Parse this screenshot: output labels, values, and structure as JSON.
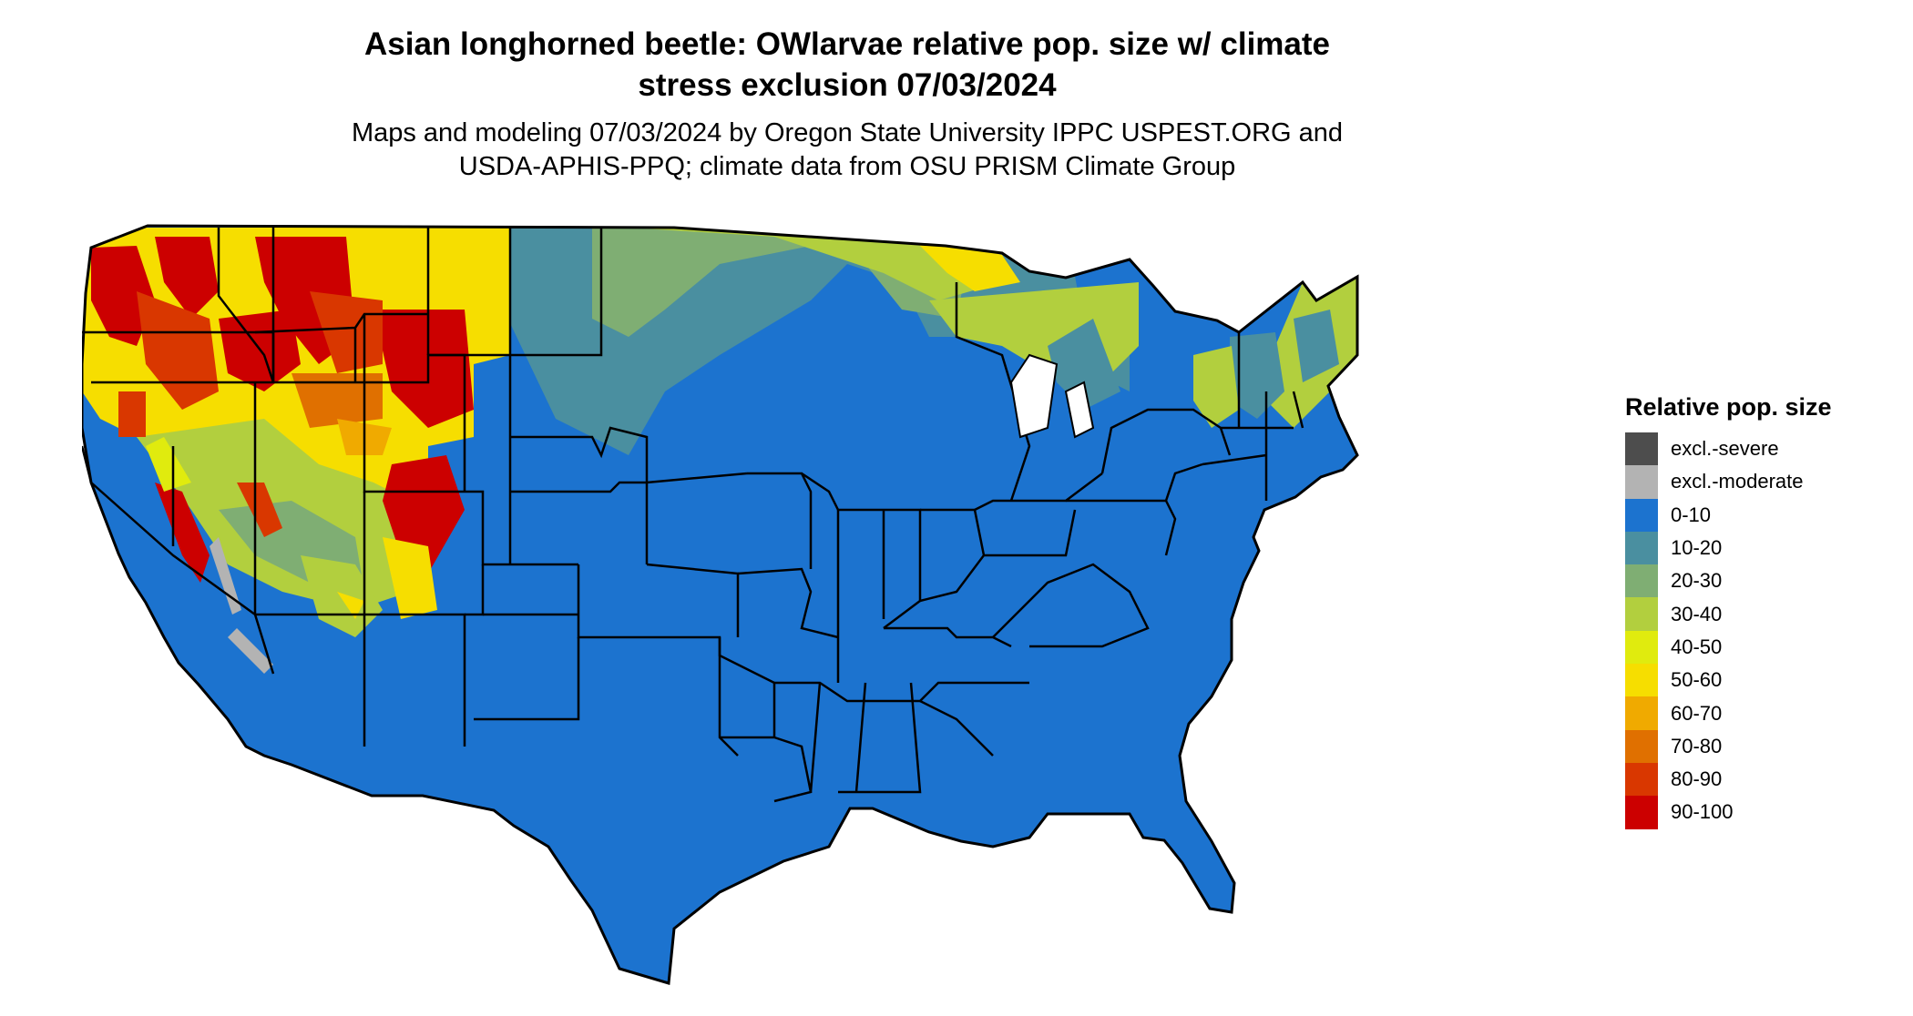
{
  "title_line1": "Asian longhorned beetle: OWlarvae relative pop. size w/ climate",
  "title_line2": "stress exclusion 07/03/2024",
  "subtitle_line1": "Maps and modeling 07/03/2024 by Oregon State University IPPC USPEST.ORG and",
  "subtitle_line2": "USDA-APHIS-PPQ; climate data from OSU PRISM Climate Group",
  "legend": {
    "title": "Relative pop. size",
    "items": [
      {
        "label": "excl.-severe",
        "color": "#4d4d4d"
      },
      {
        "label": "excl.-moderate",
        "color": "#b3b3b3"
      },
      {
        "label": "0-10",
        "color": "#1c73cf"
      },
      {
        "label": "10-20",
        "color": "#4a8fa0"
      },
      {
        "label": "20-30",
        "color": "#7fae73"
      },
      {
        "label": "30-40",
        "color": "#b2cf3e"
      },
      {
        "label": "40-50",
        "color": "#e0eb0e"
      },
      {
        "label": "50-60",
        "color": "#f6de00"
      },
      {
        "label": "60-70",
        "color": "#f0aa00"
      },
      {
        "label": "70-80",
        "color": "#e07000"
      },
      {
        "label": "80-90",
        "color": "#d93700"
      },
      {
        "label": "90-100",
        "color": "#cc0000"
      }
    ]
  }
}
